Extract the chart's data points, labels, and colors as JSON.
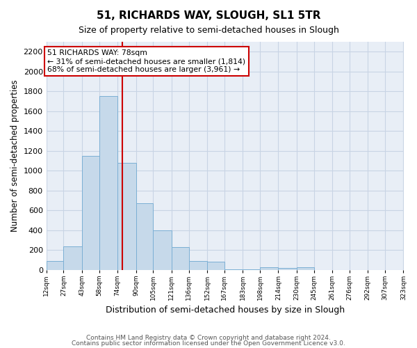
{
  "title": "51, RICHARDS WAY, SLOUGH, SL1 5TR",
  "subtitle": "Size of property relative to semi-detached houses in Slough",
  "xlabel": "Distribution of semi-detached houses by size in Slough",
  "ylabel": "Number of semi-detached properties",
  "footnote1": "Contains HM Land Registry data © Crown copyright and database right 2024.",
  "footnote2": "Contains public sector information licensed under the Open Government Licence v3.0.",
  "property_size": 78,
  "property_label": "51 RICHARDS WAY: 78sqm",
  "annotation_line1": "← 31% of semi-detached houses are smaller (1,814)",
  "annotation_line2": "68% of semi-detached houses are larger (3,961) →",
  "bar_color": "#c6d9ea",
  "bar_edge_color": "#7bafd4",
  "red_line_color": "#cc0000",
  "annotation_box_color": "#ffffff",
  "annotation_box_edge": "#cc0000",
  "grid_color": "#c8d4e4",
  "background_color": "#e8eef6",
  "bins": [
    12,
    27,
    43,
    58,
    74,
    90,
    105,
    121,
    136,
    152,
    167,
    183,
    198,
    214,
    230,
    245,
    261,
    276,
    292,
    307,
    323
  ],
  "counts": [
    90,
    240,
    1150,
    1750,
    1080,
    670,
    400,
    230,
    90,
    80,
    5,
    5,
    30,
    20,
    25,
    0,
    0,
    0,
    0,
    0
  ],
  "ylim": [
    0,
    2300
  ],
  "yticks": [
    0,
    200,
    400,
    600,
    800,
    1000,
    1200,
    1400,
    1600,
    1800,
    2000,
    2200
  ]
}
